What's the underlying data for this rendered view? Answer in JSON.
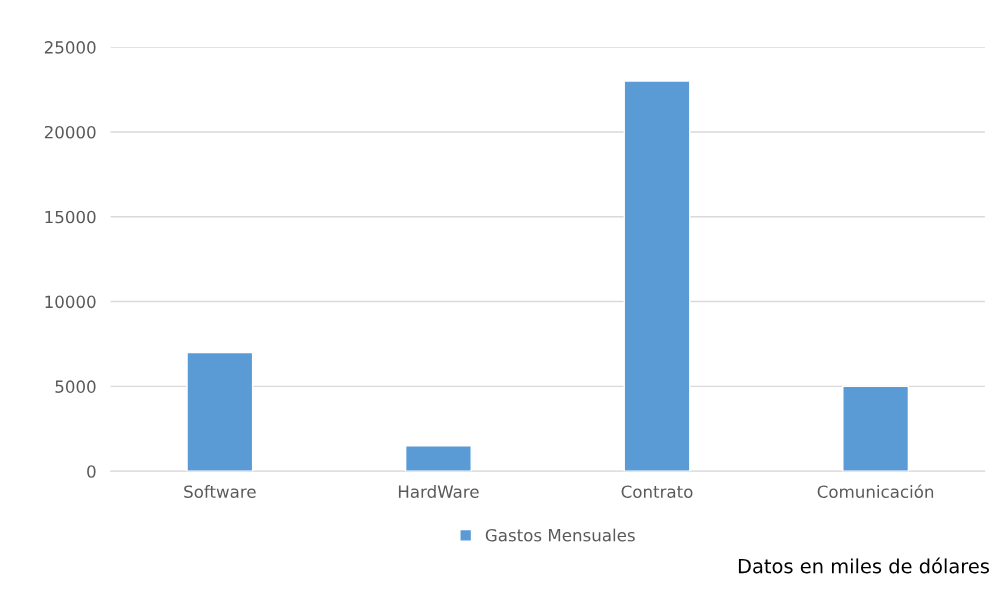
{
  "chart_data": {
    "type": "bar",
    "categories": [
      "Software",
      "HardWare",
      "Contrato",
      "Comunicación"
    ],
    "series": [
      {
        "name": "Gastos Mensuales",
        "color": "#5b9bd5",
        "values": [
          7000,
          1500,
          23000,
          5000
        ]
      }
    ],
    "ylim": [
      0,
      25000
    ],
    "yticks": [
      0,
      5000,
      10000,
      15000,
      20000,
      25000
    ],
    "grid": "y",
    "legend": "bottom",
    "annotations": [
      "Datos en miles de dólares"
    ]
  }
}
